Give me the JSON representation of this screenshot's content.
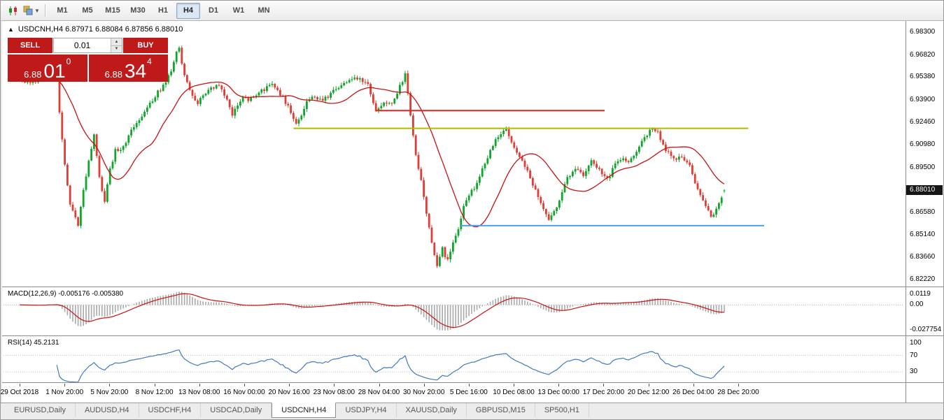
{
  "toolbar": {
    "timeframes": [
      "M1",
      "M5",
      "M15",
      "M30",
      "H1",
      "H4",
      "D1",
      "W1",
      "MN"
    ],
    "active_timeframe": "H4"
  },
  "symbol_header": {
    "collapse_icon": "▲",
    "text": "USDCNH,H4 6.87971 6.88084 6.87856 6.88010"
  },
  "trade_panel": {
    "sell_label": "SELL",
    "buy_label": "BUY",
    "volume": "0.01",
    "sell_price": {
      "small": "6.88",
      "big": "01",
      "sup": "0"
    },
    "buy_price": {
      "small": "6.88",
      "big": "34",
      "sup": "4"
    }
  },
  "tabs": {
    "items": [
      "EURUSD,Daily",
      "AUDUSD,H4",
      "USDCHF,H4",
      "USDCAD,Daily",
      "USDCNH,H4",
      "USDJPY,H4",
      "XAUUSD,Daily",
      "GBPUSD,M15",
      "SP500,H1"
    ],
    "active_index": 4
  },
  "chart_data": {
    "type": "candlestick",
    "symbol": "USDCNH",
    "timeframe": "H4",
    "last_quote": {
      "open": 6.87971,
      "high": 6.88084,
      "low": 6.87856,
      "close": 6.8801
    },
    "current_price_label": "6.88010",
    "ylim": [
      6.8176,
      6.9885
    ],
    "y_ticks": [
      "6.98300",
      "6.96820",
      "6.95380",
      "6.93900",
      "6.92460",
      "6.90980",
      "6.89500",
      "6.86580",
      "6.85140",
      "6.83660",
      "6.82220"
    ],
    "x_labels": [
      "29 Oct 2018",
      "1 Nov 20:00",
      "5 Nov 20:00",
      "8 Nov 12:00",
      "13 Nov 08:00",
      "16 Nov 00:00",
      "20 Nov 16:00",
      "23 Nov 08:00",
      "28 Nov 04:00",
      "30 Nov 20:00",
      "5 Dec 16:00",
      "10 Dec 08:00",
      "13 Dec 00:00",
      "17 Dec 20:00",
      "20 Dec 12:00",
      "26 Dec 04:00",
      "28 Dec 20:00"
    ],
    "bars": 266,
    "price_path_waypoints": [
      [
        0,
        6.952
      ],
      [
        5,
        6.95
      ],
      [
        10,
        6.954
      ],
      [
        12,
        6.956
      ],
      [
        14,
        6.95
      ],
      [
        15,
        6.93
      ],
      [
        16,
        6.912
      ],
      [
        17,
        6.898
      ],
      [
        18,
        6.884
      ],
      [
        19,
        6.872
      ],
      [
        21,
        6.863
      ],
      [
        22,
        6.858
      ],
      [
        24,
        6.88
      ],
      [
        26,
        6.9
      ],
      [
        28,
        6.916
      ],
      [
        30,
        6.89
      ],
      [
        32,
        6.872
      ],
      [
        34,
        6.894
      ],
      [
        36,
        6.906
      ],
      [
        38,
        6.906
      ],
      [
        40,
        6.912
      ],
      [
        43,
        6.922
      ],
      [
        46,
        6.928
      ],
      [
        49,
        6.936
      ],
      [
        52,
        6.944
      ],
      [
        55,
        6.95
      ],
      [
        57,
        6.958
      ],
      [
        59,
        6.97
      ],
      [
        60,
        6.972
      ],
      [
        61,
        6.962
      ],
      [
        63,
        6.95
      ],
      [
        65,
        6.942
      ],
      [
        67,
        6.937
      ],
      [
        69,
        6.941
      ],
      [
        72,
        6.947
      ],
      [
        75,
        6.949
      ],
      [
        78,
        6.938
      ],
      [
        80,
        6.93
      ],
      [
        82,
        6.936
      ],
      [
        84,
        6.941
      ],
      [
        86,
        6.938
      ],
      [
        89,
        6.943
      ],
      [
        92,
        6.946
      ],
      [
        95,
        6.949
      ],
      [
        98,
        6.943
      ],
      [
        101,
        6.935
      ],
      [
        104,
        6.924
      ],
      [
        106,
        6.93
      ],
      [
        108,
        6.937
      ],
      [
        110,
        6.941
      ],
      [
        113,
        6.939
      ],
      [
        116,
        6.941
      ],
      [
        119,
        6.946
      ],
      [
        122,
        6.95
      ],
      [
        125,
        6.953
      ],
      [
        128,
        6.952
      ],
      [
        131,
        6.95
      ],
      [
        134,
        6.931
      ],
      [
        137,
        6.938
      ],
      [
        140,
        6.936
      ],
      [
        143,
        6.948
      ],
      [
        145,
        6.955
      ],
      [
        147,
        6.93
      ],
      [
        149,
        6.904
      ],
      [
        151,
        6.886
      ],
      [
        153,
        6.866
      ],
      [
        155,
        6.846
      ],
      [
        157,
        6.83
      ],
      [
        159,
        6.842
      ],
      [
        161,
        6.834
      ],
      [
        163,
        6.846
      ],
      [
        165,
        6.856
      ],
      [
        167,
        6.87
      ],
      [
        169,
        6.877
      ],
      [
        172,
        6.884
      ],
      [
        175,
        6.898
      ],
      [
        178,
        6.91
      ],
      [
        181,
        6.918
      ],
      [
        183,
        6.92
      ],
      [
        185,
        6.912
      ],
      [
        188,
        6.902
      ],
      [
        191,
        6.892
      ],
      [
        194,
        6.88
      ],
      [
        197,
        6.868
      ],
      [
        199,
        6.861
      ],
      [
        201,
        6.866
      ],
      [
        203,
        6.874
      ],
      [
        206,
        6.888
      ],
      [
        209,
        6.894
      ],
      [
        212,
        6.889
      ],
      [
        215,
        6.9
      ],
      [
        218,
        6.894
      ],
      [
        221,
        6.887
      ],
      [
        224,
        6.897
      ],
      [
        227,
        6.902
      ],
      [
        229,
        6.899
      ],
      [
        232,
        6.906
      ],
      [
        235,
        6.914
      ],
      [
        238,
        6.921
      ],
      [
        240,
        6.918
      ],
      [
        243,
        6.906
      ],
      [
        246,
        6.901
      ],
      [
        249,
        6.902
      ],
      [
        252,
        6.896
      ],
      [
        254,
        6.886
      ],
      [
        256,
        6.876
      ],
      [
        258,
        6.87
      ],
      [
        260,
        6.862
      ],
      [
        262,
        6.867
      ],
      [
        264,
        6.876
      ],
      [
        265,
        6.8801
      ]
    ],
    "moving_average": {
      "period": 21,
      "color": "#cc1111"
    },
    "colors": {
      "up": "#10a62e",
      "down": "#e03d36",
      "background": "#ffffff"
    },
    "horizontal_lines": [
      {
        "price": 6.932,
        "from_bar": 134,
        "to_bar": 220,
        "color": "#ee2020",
        "width": 2
      },
      {
        "price": 6.9205,
        "from_bar": 103,
        "to_bar": 274,
        "color": "#b4b800",
        "width": 2
      },
      {
        "price": 6.8572,
        "from_bar": 166,
        "to_bar": 280,
        "color": "#46a4ee",
        "width": 2
      }
    ],
    "indicators": [
      {
        "name": "MACD",
        "label": "MACD(12,26,9) -0.005176 -0.005380",
        "params": [
          12,
          26,
          9
        ],
        "main_value": -0.005176,
        "signal_value": -0.00538,
        "ylim": [
          -0.034,
          0.019
        ],
        "y_ticks": [
          [
            "0.0119",
            0.0119
          ],
          [
            "0.00",
            0
          ],
          [
            "-0.027754",
            -0.027754
          ]
        ],
        "histogram_color": "#a9a9a9",
        "signal_color": "#cc1111"
      },
      {
        "name": "RSI",
        "label": "RSI(14) 45.2131",
        "period": 14,
        "value": 45.2131,
        "ylim": [
          5,
          115
        ],
        "y_ticks": [
          [
            "100",
            100
          ],
          [
            "70",
            70
          ],
          [
            "30",
            30
          ]
        ],
        "levels": [
          70,
          30
        ],
        "line_color": "#3f7ac2"
      }
    ]
  }
}
